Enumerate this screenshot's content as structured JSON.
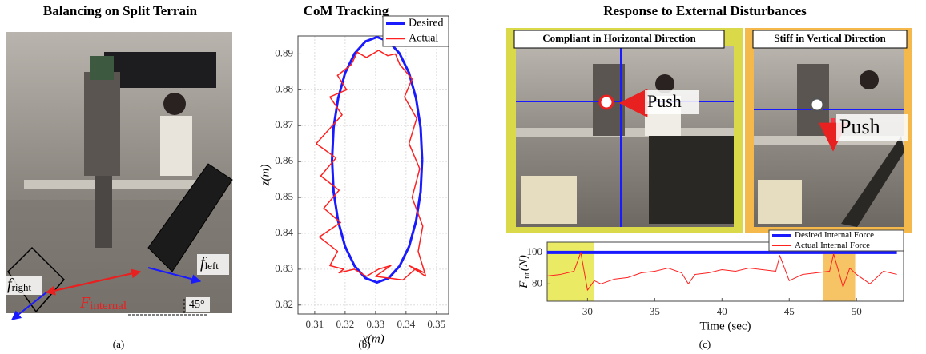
{
  "figure": {
    "panel_a": {
      "title": "Balancing on Split Terrain",
      "caption": "(a)",
      "f_right": {
        "main": "f",
        "sub": "right"
      },
      "f_internal": {
        "main": "F",
        "sub": "internal"
      },
      "f_left": {
        "main": "f",
        "sub": "left"
      },
      "angle": "45°"
    },
    "panel_b": {
      "title": "CoM Tracking",
      "caption": "(b)"
    },
    "panel_c": {
      "title": "Response to External Disturbances",
      "caption": "(c)",
      "photo_left": {
        "label": "Compliant in Horizontal Direction",
        "push": "Push"
      },
      "photo_right": {
        "label": "Stiff in Vertical Direction",
        "push": "Push"
      }
    }
  },
  "chart_data": [
    {
      "type": "line",
      "xlabel": "x(m)",
      "ylabel": "z(m)",
      "xlim": [
        0.3045,
        0.354
      ],
      "ylim": [
        0.8175,
        0.895
      ],
      "xticks": [
        0.31,
        0.32,
        0.33,
        0.34,
        0.35
      ],
      "yticks": [
        0.82,
        0.83,
        0.84,
        0.85,
        0.86,
        0.87,
        0.88,
        0.89
      ],
      "grid": true,
      "legend": "upper right",
      "series": [
        {
          "name": "Desired",
          "color": "#1a1aff",
          "width": 3,
          "x": [
            0.3453,
            0.3448,
            0.3433,
            0.341,
            0.3379,
            0.3343,
            0.3305,
            0.3267,
            0.3231,
            0.32,
            0.3177,
            0.3162,
            0.3157,
            0.3162,
            0.3177,
            0.32,
            0.3231,
            0.3267,
            0.3305,
            0.3343,
            0.3379,
            0.341,
            0.3433,
            0.3448,
            0.3453
          ],
          "values": [
            0.8605,
            0.8694,
            0.8776,
            0.8847,
            0.8901,
            0.8935,
            0.8947,
            0.8935,
            0.8901,
            0.8847,
            0.8776,
            0.8694,
            0.8605,
            0.8516,
            0.8434,
            0.8363,
            0.8309,
            0.8275,
            0.8263,
            0.8275,
            0.8309,
            0.8363,
            0.8434,
            0.8516,
            0.8605
          ]
        },
        {
          "name": "Actual",
          "color": "#ff2020",
          "width": 1.5,
          "x": [
            0.3465,
            0.344,
            0.3455,
            0.342,
            0.3445,
            0.341,
            0.3435,
            0.3395,
            0.342,
            0.338,
            0.3365,
            0.334,
            0.331,
            0.327,
            0.324,
            0.322,
            0.3175,
            0.3205,
            0.315,
            0.319,
            0.3105,
            0.317,
            0.312,
            0.318,
            0.313,
            0.3185,
            0.3115,
            0.3175,
            0.315,
            0.3195,
            0.318,
            0.323,
            0.327,
            0.331,
            0.335,
            0.33,
            0.339,
            0.343,
            0.346,
            0.341,
            0.3465
          ],
          "values": [
            0.828,
            0.835,
            0.842,
            0.85,
            0.858,
            0.865,
            0.872,
            0.878,
            0.883,
            0.887,
            0.89,
            0.8895,
            0.891,
            0.889,
            0.8905,
            0.887,
            0.884,
            0.88,
            0.878,
            0.873,
            0.865,
            0.861,
            0.856,
            0.852,
            0.847,
            0.843,
            0.839,
            0.835,
            0.831,
            0.83,
            0.829,
            0.83,
            0.828,
            0.83,
            0.831,
            0.828,
            0.827,
            0.83,
            0.829,
            0.831,
            0.828
          ]
        }
      ]
    },
    {
      "type": "line",
      "xlabel": "Time (sec)",
      "ylabel": {
        "main": "F",
        "sub": "int",
        "unit": "(N)"
      },
      "xlim": [
        27,
        53.5
      ],
      "ylim": [
        69,
        106.5
      ],
      "xticks": [
        30,
        35,
        40,
        45,
        50
      ],
      "yticks": [
        80,
        100
      ],
      "grid": false,
      "legend": "upper right",
      "highlights": [
        {
          "x0": 27,
          "x1": 30.5,
          "color": "#e6e64a"
        },
        {
          "x0": 47.5,
          "x1": 49.9,
          "color": "#f5b84a"
        }
      ],
      "x": [
        27,
        28,
        29,
        29.5,
        30,
        30.5,
        31,
        32,
        33,
        34,
        35,
        36,
        37,
        37.5,
        38,
        39,
        40,
        41,
        42,
        43,
        44,
        44.3,
        45,
        46,
        47,
        48,
        48.3,
        49,
        49.5,
        50,
        51,
        52,
        53
      ],
      "series": [
        {
          "name": "Desired Internal Force",
          "color": "#1a1aff",
          "width": 4,
          "values": [
            100,
            100,
            100,
            100,
            100,
            100,
            100,
            100,
            100,
            100,
            100,
            100,
            100,
            100,
            100,
            100,
            100,
            100,
            100,
            100,
            100,
            100,
            100,
            100,
            100,
            100,
            100,
            100,
            100,
            100,
            100,
            100,
            100
          ]
        },
        {
          "name": "Actual Internal Force",
          "color": "#ff2020",
          "width": 1,
          "values": [
            85,
            86,
            88,
            100,
            76,
            82,
            80,
            83,
            84,
            87,
            88,
            90,
            87,
            80,
            86,
            87,
            89,
            88,
            90,
            89,
            88,
            98,
            82,
            86,
            87,
            88,
            99,
            78,
            90,
            86,
            80,
            88,
            86
          ]
        }
      ]
    }
  ]
}
